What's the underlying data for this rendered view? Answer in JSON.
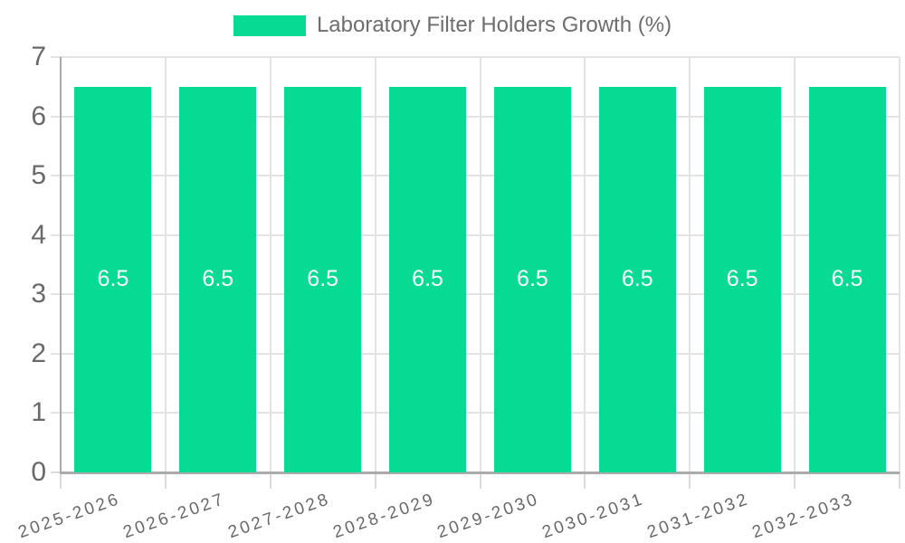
{
  "legend": {
    "label": "Laboratory Filter Holders Growth (%)"
  },
  "chart_data": {
    "type": "bar",
    "title": "Laboratory Filter Holders Growth (%)",
    "categories": [
      "2025-2026",
      "2026-2027",
      "2027-2028",
      "2028-2029",
      "2029-2030",
      "2030-2031",
      "2031-2032",
      "2032-2033"
    ],
    "values": [
      6.5,
      6.5,
      6.5,
      6.5,
      6.5,
      6.5,
      6.5,
      6.5
    ],
    "bar_labels": [
      "6.5",
      "6.5",
      "6.5",
      "6.5",
      "6.5",
      "6.5",
      "6.5",
      "6.5"
    ],
    "xlabel": "",
    "ylabel": "",
    "ylim": [
      0,
      7
    ],
    "yticks": [
      0,
      1,
      2,
      3,
      4,
      5,
      6,
      7
    ],
    "grid": true,
    "legend_position": "top-center",
    "colors": {
      "bar": "#07db93",
      "grid": "#e3e3e3",
      "axis": "#ababab",
      "tick": "#dcdcdc",
      "tick_text": "#696969",
      "value_label": "#ffffff"
    }
  }
}
